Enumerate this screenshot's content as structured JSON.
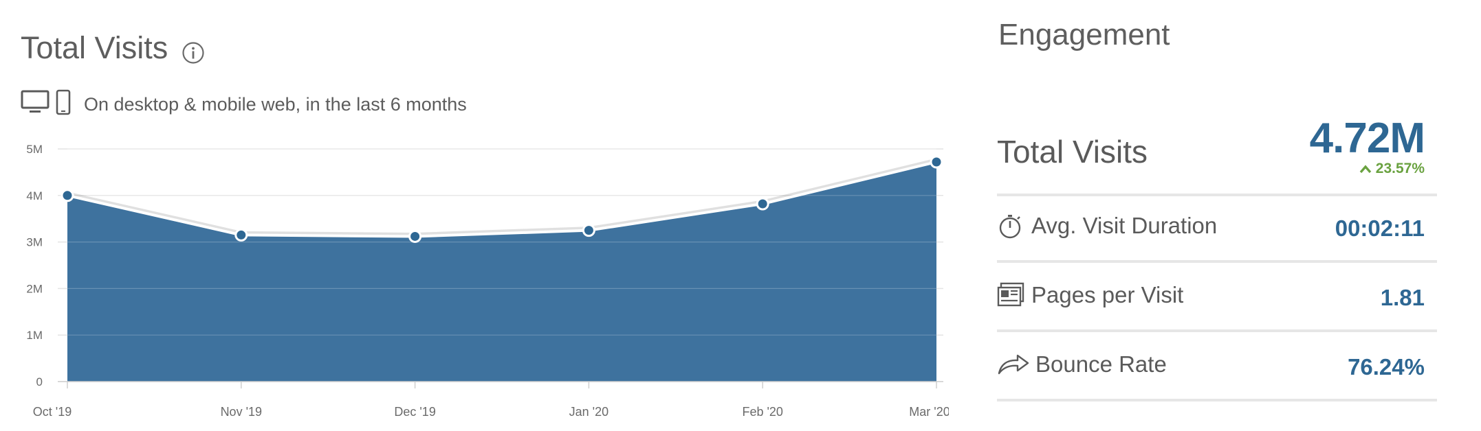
{
  "total_visits_panel": {
    "title": "Total Visits",
    "subtitle": "On desktop & mobile web, in the last 6 months",
    "icons": [
      "info-icon",
      "desktop-icon",
      "mobile-icon"
    ]
  },
  "chart_data": {
    "type": "area",
    "categories": [
      "Oct '19",
      "Nov '19",
      "Dec '19",
      "Jan '20",
      "Feb '20",
      "Mar '20"
    ],
    "values": [
      4.0,
      3.15,
      3.12,
      3.25,
      3.82,
      4.72
    ],
    "unit": "M",
    "y_ticks": [
      "0",
      "1M",
      "2M",
      "3M",
      "4M",
      "5M"
    ],
    "ylim": [
      0,
      5
    ],
    "grid": true,
    "fill_color": "#3e729e",
    "line_color": "#ffffff",
    "marker_color": "#2e6793"
  },
  "engagement": {
    "title": "Engagement",
    "total_visits": {
      "label": "Total Visits",
      "value": "4.72M",
      "change": "23.57%",
      "change_direction": "up",
      "change_color": "#6aa240"
    },
    "metrics": [
      {
        "label": "Avg. Visit Duration",
        "value": "00:02:11",
        "icon": "stopwatch-icon"
      },
      {
        "label": "Pages per Visit",
        "value": "1.81",
        "icon": "pages-icon"
      },
      {
        "label": "Bounce Rate",
        "value": "76.24%",
        "icon": "bounce-arrow-icon"
      }
    ],
    "value_color": "#2e6793"
  }
}
